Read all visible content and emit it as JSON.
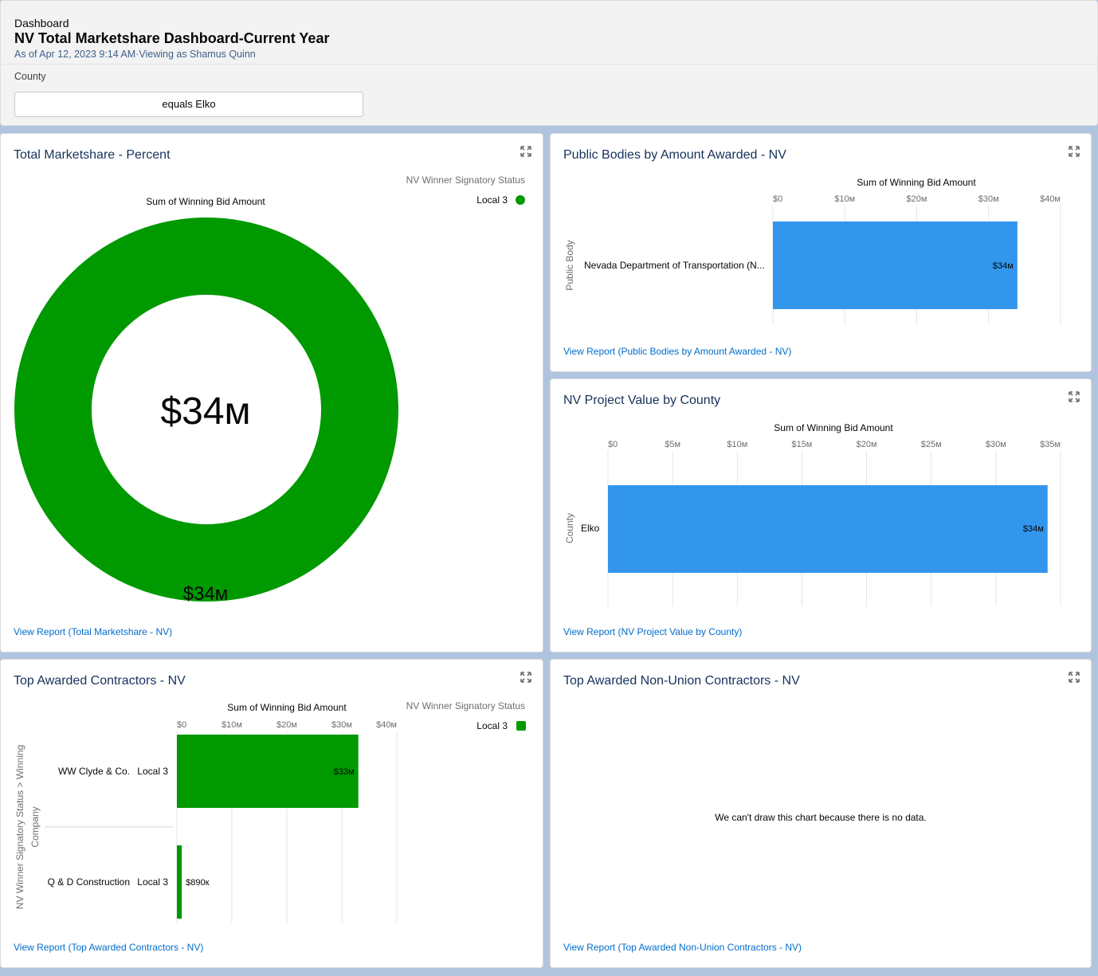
{
  "header": {
    "eyebrow": "Dashboard",
    "title": "NV Total Marketshare Dashboard-Current Year",
    "subtitle": "As of Apr 12, 2023 9:14 AM·Viewing as Shamus Quinn"
  },
  "filter": {
    "label": "County",
    "value": "equals Elko"
  },
  "colors": {
    "green": "#009900",
    "blue": "#3296ed",
    "link": "#006dcc",
    "title": "#16325c"
  },
  "icons": {
    "expand": "expand-icon",
    "legend_dot": "legend-dot-icon"
  },
  "cards": {
    "marketshare": {
      "title": "Total Marketshare - Percent",
      "legend_title": "NV Winner Signatory Status",
      "legend_item": "Local 3",
      "chart_title": "Sum of Winning Bid Amount",
      "center_value": "$34м",
      "slice_label": "$34м",
      "link": "View Report (Total Marketshare - NV)"
    },
    "public_bodies": {
      "title": "Public Bodies by Amount Awarded - NV",
      "chart_title": "Sum of Winning Bid Amount",
      "ticks": [
        "$0",
        "$10м",
        "$20м",
        "$30м",
        "$40м"
      ],
      "ylabel": "Public Body",
      "category": "Nevada Department of Transportation (N...",
      "bar_label": "$34м",
      "link": "View Report (Public Bodies by Amount Awarded - NV)"
    },
    "county": {
      "title": "NV Project Value by County",
      "chart_title": "Sum of Winning Bid Amount",
      "ticks": [
        "$0",
        "$5м",
        "$10м",
        "$15м",
        "$20м",
        "$25м",
        "$30м",
        "$35м"
      ],
      "ylabel": "County",
      "category": "Elko",
      "bar_label": "$34м",
      "link": "View Report (NV Project Value by County)"
    },
    "contractors": {
      "title": "Top Awarded Contractors - NV",
      "chart_title": "Sum of Winning Bid Amount",
      "legend_title": "NV Winner Signatory Status",
      "legend_item": "Local 3",
      "ticks": [
        "$0",
        "$10м",
        "$20м",
        "$30м",
        "$40м"
      ],
      "ylabel_line1": "NV Winner Signatory Status > Winning",
      "ylabel_line2": "Company",
      "rows": [
        {
          "company": "WW Clyde & Co.",
          "status": "Local 3",
          "bar_label": "$33м"
        },
        {
          "company": "Q & D Construction",
          "status": "Local 3",
          "bar_label": "$890к"
        }
      ],
      "link": "View Report (Top Awarded Contractors - NV)"
    },
    "nonunion": {
      "title": "Top Awarded Non-Union Contractors - NV",
      "empty_message": "We can't draw this chart because there is no data.",
      "link": "View Report (Top Awarded Non-Union Contractors - NV)"
    }
  },
  "chart_data": [
    {
      "type": "pie",
      "title": "Sum of Winning Bid Amount",
      "legend_title": "NV Winner Signatory Status",
      "categories": [
        "Local 3"
      ],
      "values": [
        34000000
      ],
      "legend": "top-right"
    },
    {
      "type": "bar",
      "title": "Sum of Winning Bid Amount",
      "ylabel": "Public Body",
      "categories": [
        "Nevada Department of Transportation (N..."
      ],
      "values": [
        34000000
      ],
      "xlim": [
        0,
        40000000
      ]
    },
    {
      "type": "bar",
      "title": "Sum of Winning Bid Amount",
      "ylabel": "County",
      "categories": [
        "Elko"
      ],
      "values": [
        34000000
      ],
      "xlim": [
        0,
        35000000
      ]
    },
    {
      "type": "bar",
      "title": "Sum of Winning Bid Amount",
      "legend_title": "NV Winner Signatory Status",
      "ylabel": "NV Winner Signatory Status > Winning Company",
      "categories": [
        "WW Clyde & Co.",
        "Q & D Construction"
      ],
      "series": [
        {
          "name": "Local 3",
          "values": [
            33000000,
            890000
          ]
        }
      ],
      "xlim": [
        0,
        40000000
      ]
    }
  ]
}
